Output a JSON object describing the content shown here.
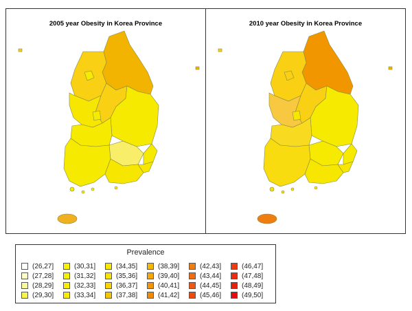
{
  "maps": [
    {
      "title": "2005 year Obesity in Korea Province",
      "provinces": {
        "gangwon": "#f2b400",
        "gyeonggi": "#fad015",
        "chungbuk": "#fad015",
        "chungnam": "#f7e600",
        "gyeongbuk": "#f5ea00",
        "daegu": "#f5ea00",
        "gyeongnam": "#f7e600",
        "jeonbuk": "#f5ea00",
        "jeonnam": "#f5ea00",
        "jeju": "#f0b020",
        "seoul": "#f5ea00",
        "daejeon": "#f5ea00",
        "gwangju": "#f7e600",
        "ulsan": "#f5ea00",
        "busan": "#f7e600",
        "ul_east": "#f2b400",
        "light_south": "#f8ee6a"
      }
    },
    {
      "title": "2010 year Obesity in Korea Province",
      "provinces": {
        "gangwon": "#f29600",
        "gyeonggi": "#fad015",
        "chungbuk": "#fad015",
        "chungnam": "#f7c840",
        "gyeongbuk": "#f5ea00",
        "daegu": "#f7e600",
        "gyeongnam": "#f7e600",
        "jeonbuk": "#f8da20",
        "jeonnam": "#f8dc10",
        "jeju": "#f07d10",
        "seoul": "#fad015",
        "daejeon": "#f7e600",
        "gwangju": "#f2b400",
        "ulsan": "#f5ea00",
        "busan": "#f7e600",
        "ul_east": "#f2b400",
        "light_south": "#f5ea00"
      }
    }
  ],
  "legend": {
    "title": "Prevalence",
    "items": [
      {
        "label": "(26,27]",
        "color": "#ffffff"
      },
      {
        "label": "(30,31]",
        "color": "#f7f200"
      },
      {
        "label": "(34,35]",
        "color": "#f8e800"
      },
      {
        "label": "(38,39]",
        "color": "#f5b800"
      },
      {
        "label": "(42,43]",
        "color": "#f07d10"
      },
      {
        "label": "(46,47]",
        "color": "#ee3b10"
      },
      {
        "label": "(27,28]",
        "color": "#fcfcc4"
      },
      {
        "label": "(31,32]",
        "color": "#f7f000"
      },
      {
        "label": "(35,36]",
        "color": "#f8e200"
      },
      {
        "label": "(39,40]",
        "color": "#f4a800"
      },
      {
        "label": "(43,44]",
        "color": "#f06c10"
      },
      {
        "label": "(47,48]",
        "color": "#ec2c10"
      },
      {
        "label": "(28,29]",
        "color": "#f8f8a0"
      },
      {
        "label": "(32,33]",
        "color": "#f8ee00"
      },
      {
        "label": "(36,37]",
        "color": "#f8d400"
      },
      {
        "label": "(40,41]",
        "color": "#f29600"
      },
      {
        "label": "(44,45]",
        "color": "#f05a10"
      },
      {
        "label": "(48,49]",
        "color": "#e81e10"
      },
      {
        "label": "(29,30]",
        "color": "#f7f44c"
      },
      {
        "label": "(33,34]",
        "color": "#f8ea00"
      },
      {
        "label": "(37,38]",
        "color": "#f6c400"
      },
      {
        "label": "(41,42]",
        "color": "#f28a00"
      },
      {
        "label": "(45,46]",
        "color": "#ee4a10"
      },
      {
        "label": "(49,50]",
        "color": "#e40c0c"
      }
    ]
  }
}
